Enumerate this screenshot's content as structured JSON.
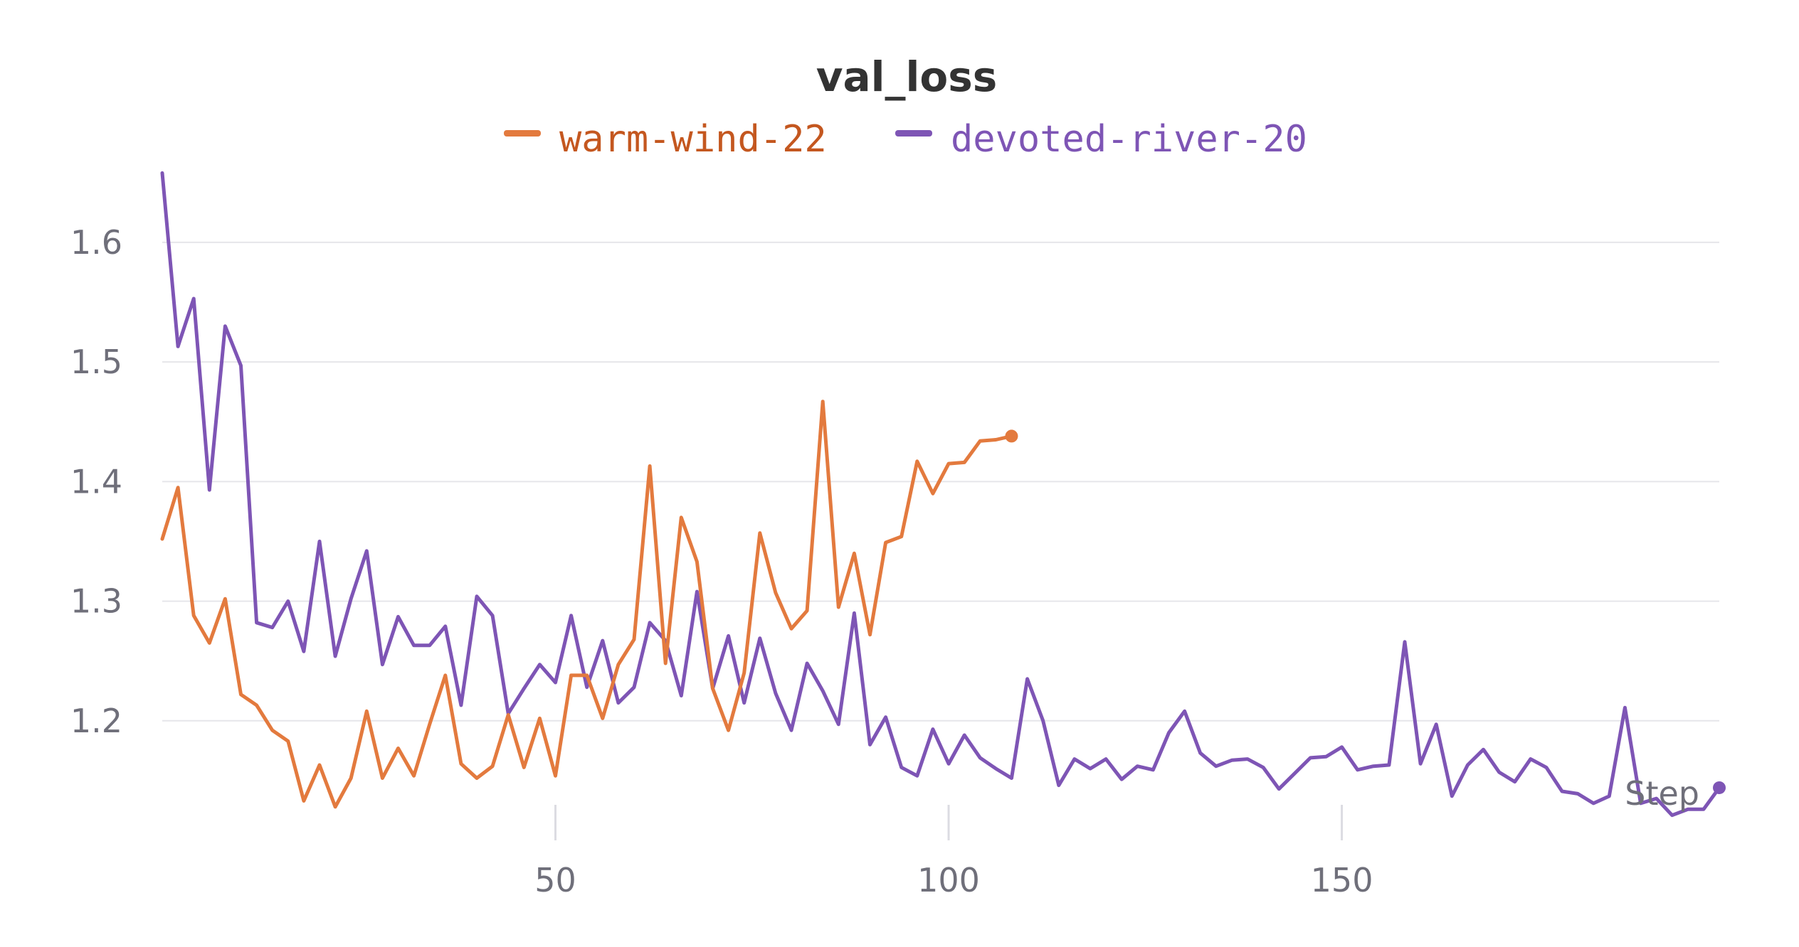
{
  "chart_data": {
    "type": "line",
    "title": "val_loss",
    "xlabel": "Step",
    "ylabel": "",
    "xlim": [
      0,
      198
    ],
    "ylim": [
      1.1,
      1.66
    ],
    "x_ticks": [
      50,
      100,
      150
    ],
    "y_ticks": [
      1.2,
      1.3,
      1.4,
      1.5,
      1.6
    ],
    "grid": true,
    "legend_position": "top",
    "series": [
      {
        "name": "warm-wind-22",
        "color": "#e37a3e",
        "x": [
          0,
          2,
          4,
          6,
          8,
          10,
          12,
          14,
          16,
          18,
          20,
          22,
          24,
          26,
          28,
          30,
          32,
          34,
          36,
          38,
          40,
          42,
          44,
          46,
          48,
          50,
          52,
          54,
          56,
          58,
          60,
          62,
          64,
          66,
          68,
          70,
          72,
          74,
          76,
          78,
          80,
          82,
          84,
          86,
          88,
          90,
          92,
          94,
          96,
          98,
          100,
          102,
          104,
          106,
          108
        ],
        "values": [
          1.352,
          1.395,
          1.288,
          1.265,
          1.302,
          1.222,
          1.213,
          1.192,
          1.183,
          1.133,
          1.163,
          1.128,
          1.152,
          1.208,
          1.152,
          1.177,
          1.154,
          1.197,
          1.238,
          1.164,
          1.152,
          1.162,
          1.205,
          1.161,
          1.202,
          1.154,
          1.238,
          1.238,
          1.202,
          1.247,
          1.268,
          1.413,
          1.248,
          1.37,
          1.333,
          1.227,
          1.192,
          1.24,
          1.357,
          1.307,
          1.277,
          1.292,
          1.467,
          1.295,
          1.34,
          1.272,
          1.349,
          1.354,
          1.417,
          1.39,
          1.415,
          1.416,
          1.434,
          1.435,
          1.438
        ]
      },
      {
        "name": "devoted-river-20",
        "color": "#7e55b5",
        "x": [
          0,
          2,
          4,
          6,
          8,
          10,
          12,
          14,
          16,
          18,
          20,
          22,
          24,
          26,
          28,
          30,
          32,
          34,
          36,
          38,
          40,
          42,
          44,
          46,
          48,
          50,
          52,
          54,
          56,
          58,
          60,
          62,
          64,
          66,
          68,
          70,
          72,
          74,
          76,
          78,
          80,
          82,
          84,
          86,
          88,
          90,
          92,
          94,
          96,
          98,
          100,
          102,
          104,
          106,
          108,
          110,
          112,
          114,
          116,
          118,
          120,
          122,
          124,
          126,
          128,
          130,
          132,
          134,
          136,
          138,
          140,
          142,
          144,
          146,
          148,
          150,
          152,
          154,
          156,
          158,
          160,
          162,
          164,
          166,
          168,
          170,
          172,
          174,
          176,
          178,
          180,
          182,
          184,
          186,
          188,
          190,
          192,
          194,
          196,
          198
        ],
        "values": [
          1.658,
          1.513,
          1.553,
          1.393,
          1.53,
          1.497,
          1.282,
          1.278,
          1.3,
          1.258,
          1.35,
          1.254,
          1.302,
          1.342,
          1.247,
          1.287,
          1.263,
          1.263,
          1.279,
          1.213,
          1.304,
          1.288,
          1.206,
          1.227,
          1.247,
          1.232,
          1.288,
          1.228,
          1.267,
          1.215,
          1.228,
          1.282,
          1.267,
          1.221,
          1.308,
          1.227,
          1.271,
          1.215,
          1.269,
          1.223,
          1.192,
          1.248,
          1.225,
          1.197,
          1.29,
          1.18,
          1.203,
          1.161,
          1.154,
          1.193,
          1.164,
          1.188,
          1.169,
          1.16,
          1.152,
          1.235,
          1.2,
          1.146,
          1.168,
          1.16,
          1.168,
          1.151,
          1.162,
          1.159,
          1.19,
          1.208,
          1.173,
          1.162,
          1.167,
          1.168,
          1.161,
          1.143,
          1.156,
          1.169,
          1.17,
          1.178,
          1.159,
          1.162,
          1.163,
          1.266,
          1.164,
          1.197,
          1.137,
          1.163,
          1.176,
          1.157,
          1.149,
          1.168,
          1.161,
          1.141,
          1.139,
          1.131,
          1.137,
          1.211,
          1.131,
          1.135,
          1.121,
          1.126,
          1.126,
          1.144
        ]
      }
    ]
  }
}
